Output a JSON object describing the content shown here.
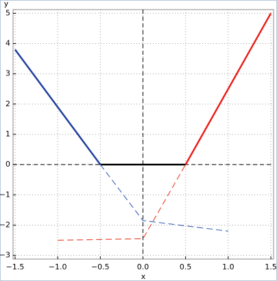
{
  "chart_data": {
    "type": "line",
    "xlabel": "x",
    "ylabel": "y",
    "xlim": [
      -1.5,
      1.5
    ],
    "ylim": [
      -3.1,
      5.1
    ],
    "xticks": [
      {
        "value": -1.5,
        "label": "−1.5"
      },
      {
        "value": -1.0,
        "label": "−1.0"
      },
      {
        "value": -0.5,
        "label": "−0.5"
      },
      {
        "value": 0.0,
        "label": "0.0"
      },
      0.5,
      {
        "value": 1.0,
        "label": "1.0"
      },
      1.5
    ],
    "yticks": [
      {
        "value": -3,
        "label": "−3"
      },
      {
        "value": -2,
        "label": "−2"
      },
      {
        "value": -1,
        "label": "−1"
      },
      0,
      1,
      2,
      3,
      4,
      5
    ],
    "grid": true,
    "zero_lines": true,
    "series": [
      {
        "color": "#1f3f9f",
        "style": "solid",
        "x": [
          -1.5,
          -0.5
        ],
        "values": [
          3.8,
          0
        ]
      },
      {
        "color": "#000000",
        "style": "solid",
        "x": [
          -0.5,
          0.5
        ],
        "values": [
          0,
          0
        ]
      },
      {
        "color": "#e8201a",
        "style": "solid",
        "x": [
          0.5,
          1.5
        ],
        "values": [
          0,
          5
        ]
      },
      {
        "color": "#4a6ab8",
        "style": "dashed",
        "x": [
          -0.5,
          0,
          1
        ],
        "values": [
          0,
          -1.85,
          -2.2
        ]
      },
      {
        "color": "#e8503a",
        "style": "dashed",
        "x": [
          -1,
          0,
          0.5
        ],
        "values": [
          -2.5,
          -2.45,
          0
        ]
      }
    ]
  }
}
